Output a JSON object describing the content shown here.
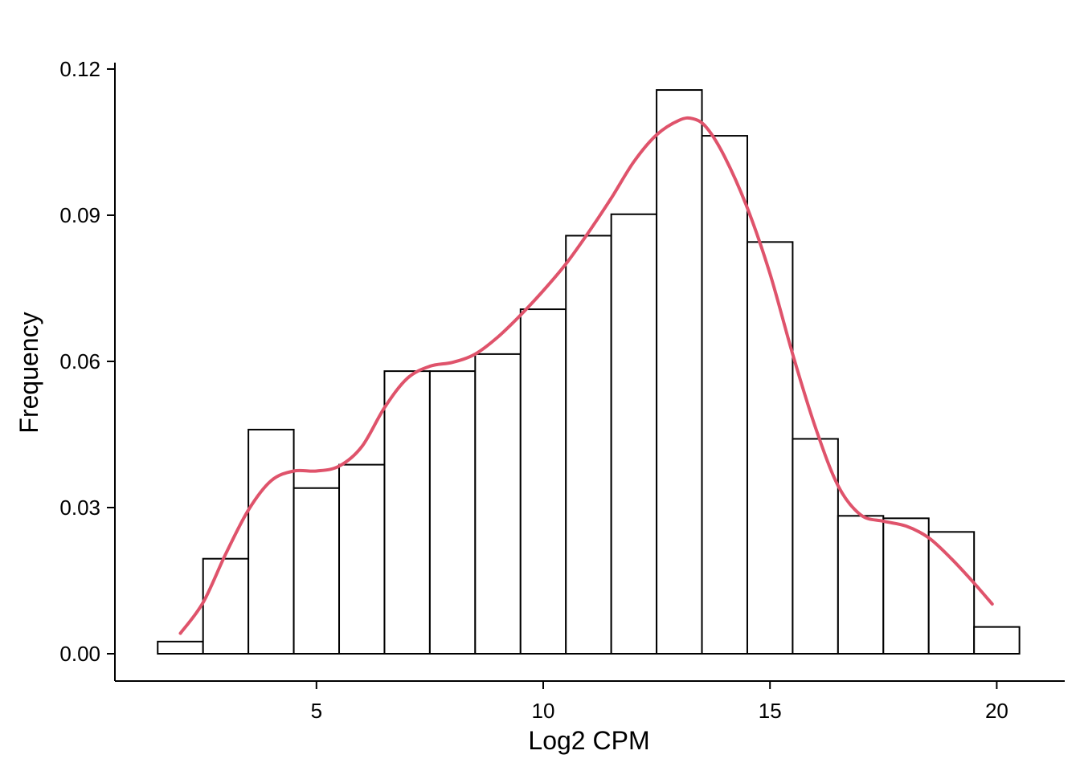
{
  "chart_data": {
    "type": "bar",
    "subtype": "histogram-with-density",
    "xlabel": "Log2 CPM",
    "ylabel": "Frequency",
    "xlim": [
      1.0,
      21.5
    ],
    "ylim": [
      -0.005,
      0.122
    ],
    "x_ticks": [
      5,
      10,
      15,
      20
    ],
    "x_tick_labels": [
      "5",
      "10",
      "15",
      "20"
    ],
    "y_ticks": [
      0.0,
      0.03,
      0.06,
      0.09,
      0.12
    ],
    "y_tick_labels": [
      "0.00",
      "0.03",
      "0.06",
      "0.09",
      "0.12"
    ],
    "bin_width": 1,
    "bin_centers": [
      2,
      3,
      4,
      5,
      6,
      7,
      8,
      9,
      10,
      11,
      12,
      13,
      14,
      15,
      16,
      17,
      18,
      19,
      20
    ],
    "values": [
      0.0025,
      0.0195,
      0.046,
      0.034,
      0.0388,
      0.058,
      0.058,
      0.0615,
      0.0707,
      0.0858,
      0.0902,
      0.1157,
      0.1063,
      0.0845,
      0.0441,
      0.0283,
      0.0278,
      0.025,
      0.0055
    ],
    "bar_fill": "#ffffff",
    "bar_stroke": "#000000",
    "density": {
      "color": "#DF536B",
      "x": [
        2.0,
        2.5,
        3.0,
        3.5,
        4.0,
        4.5,
        5.0,
        5.5,
        6.0,
        6.5,
        7.0,
        7.5,
        8.0,
        8.5,
        9.0,
        9.5,
        10.0,
        10.5,
        11.0,
        11.5,
        12.0,
        12.5,
        13.0,
        13.3,
        13.6,
        14.0,
        14.5,
        15.0,
        15.5,
        16.0,
        16.5,
        17.0,
        17.5,
        18.0,
        18.5,
        19.0,
        19.5,
        19.9
      ],
      "y": [
        0.0042,
        0.0105,
        0.0205,
        0.0295,
        0.0355,
        0.0375,
        0.0375,
        0.0385,
        0.0425,
        0.0505,
        0.0565,
        0.059,
        0.0598,
        0.0615,
        0.065,
        0.0695,
        0.0745,
        0.08,
        0.0865,
        0.0935,
        0.101,
        0.1065,
        0.1095,
        0.1098,
        0.108,
        0.102,
        0.0915,
        0.078,
        0.0615,
        0.0465,
        0.0345,
        0.0285,
        0.0272,
        0.0262,
        0.0238,
        0.0195,
        0.0145,
        0.0102
      ]
    }
  }
}
